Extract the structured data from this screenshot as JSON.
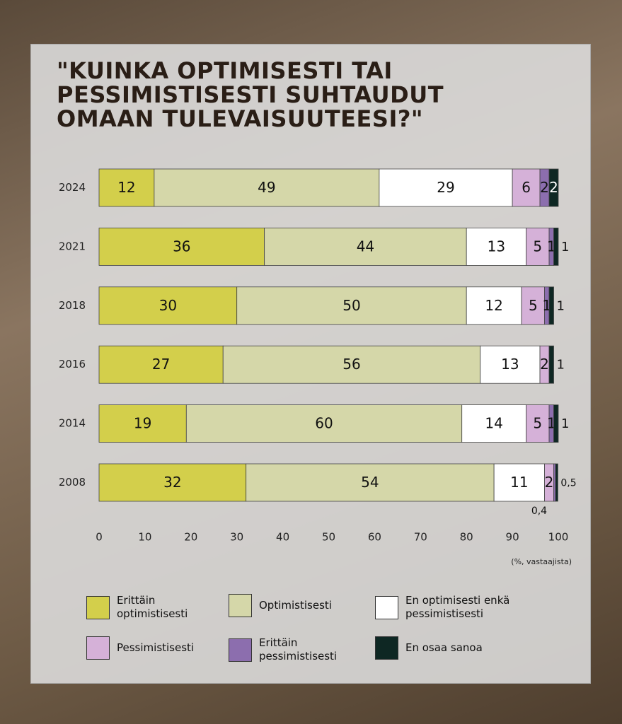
{
  "chart_data": {
    "type": "stacked-bar-horizontal",
    "title": [
      "\"KUINKA OPTIMISESTI TAI",
      "PESSIMISTISESTI SUHTAUDUT",
      "OMAAN TULEVAISUUTEESI?\""
    ],
    "x_axis_label": "(%, vastaajista)",
    "categories": [
      "2024",
      "2021",
      "2018",
      "2016",
      "2014",
      "2008"
    ],
    "series": [
      {
        "name": "Erittäin optimistisesti",
        "color": "#d3cf4b",
        "values": [
          12,
          36,
          30,
          27,
          19,
          32
        ]
      },
      {
        "name": "Optimistisesti",
        "color": "#d5d7a9",
        "values": [
          49,
          44,
          50,
          56,
          60,
          54
        ]
      },
      {
        "name": "En optimisesti enkä pessimistisesti",
        "color": "#ffffff",
        "values": [
          29,
          13,
          12,
          13,
          14,
          11
        ]
      },
      {
        "name": "Pessimistisesti",
        "color": "#d5b1d8",
        "values": [
          6,
          5,
          5,
          2,
          5,
          2
        ]
      },
      {
        "name": "Erittäin pessimistisesti",
        "color": "#8c6eae",
        "values": [
          2,
          1,
          1,
          null,
          1,
          0.4
        ],
        "value_labels": [
          null,
          null,
          null,
          null,
          null,
          "0,4"
        ]
      },
      {
        "name": "En osaa sanoa",
        "color": "#0e2723",
        "values": [
          2,
          1,
          1,
          1,
          1,
          0.5
        ],
        "value_labels": [
          null,
          null,
          null,
          null,
          null,
          "0,5"
        ]
      }
    ],
    "xlim": [
      0,
      100
    ],
    "xticks": [
      0,
      10,
      20,
      30,
      40,
      50,
      60,
      70,
      80,
      90,
      100
    ]
  }
}
